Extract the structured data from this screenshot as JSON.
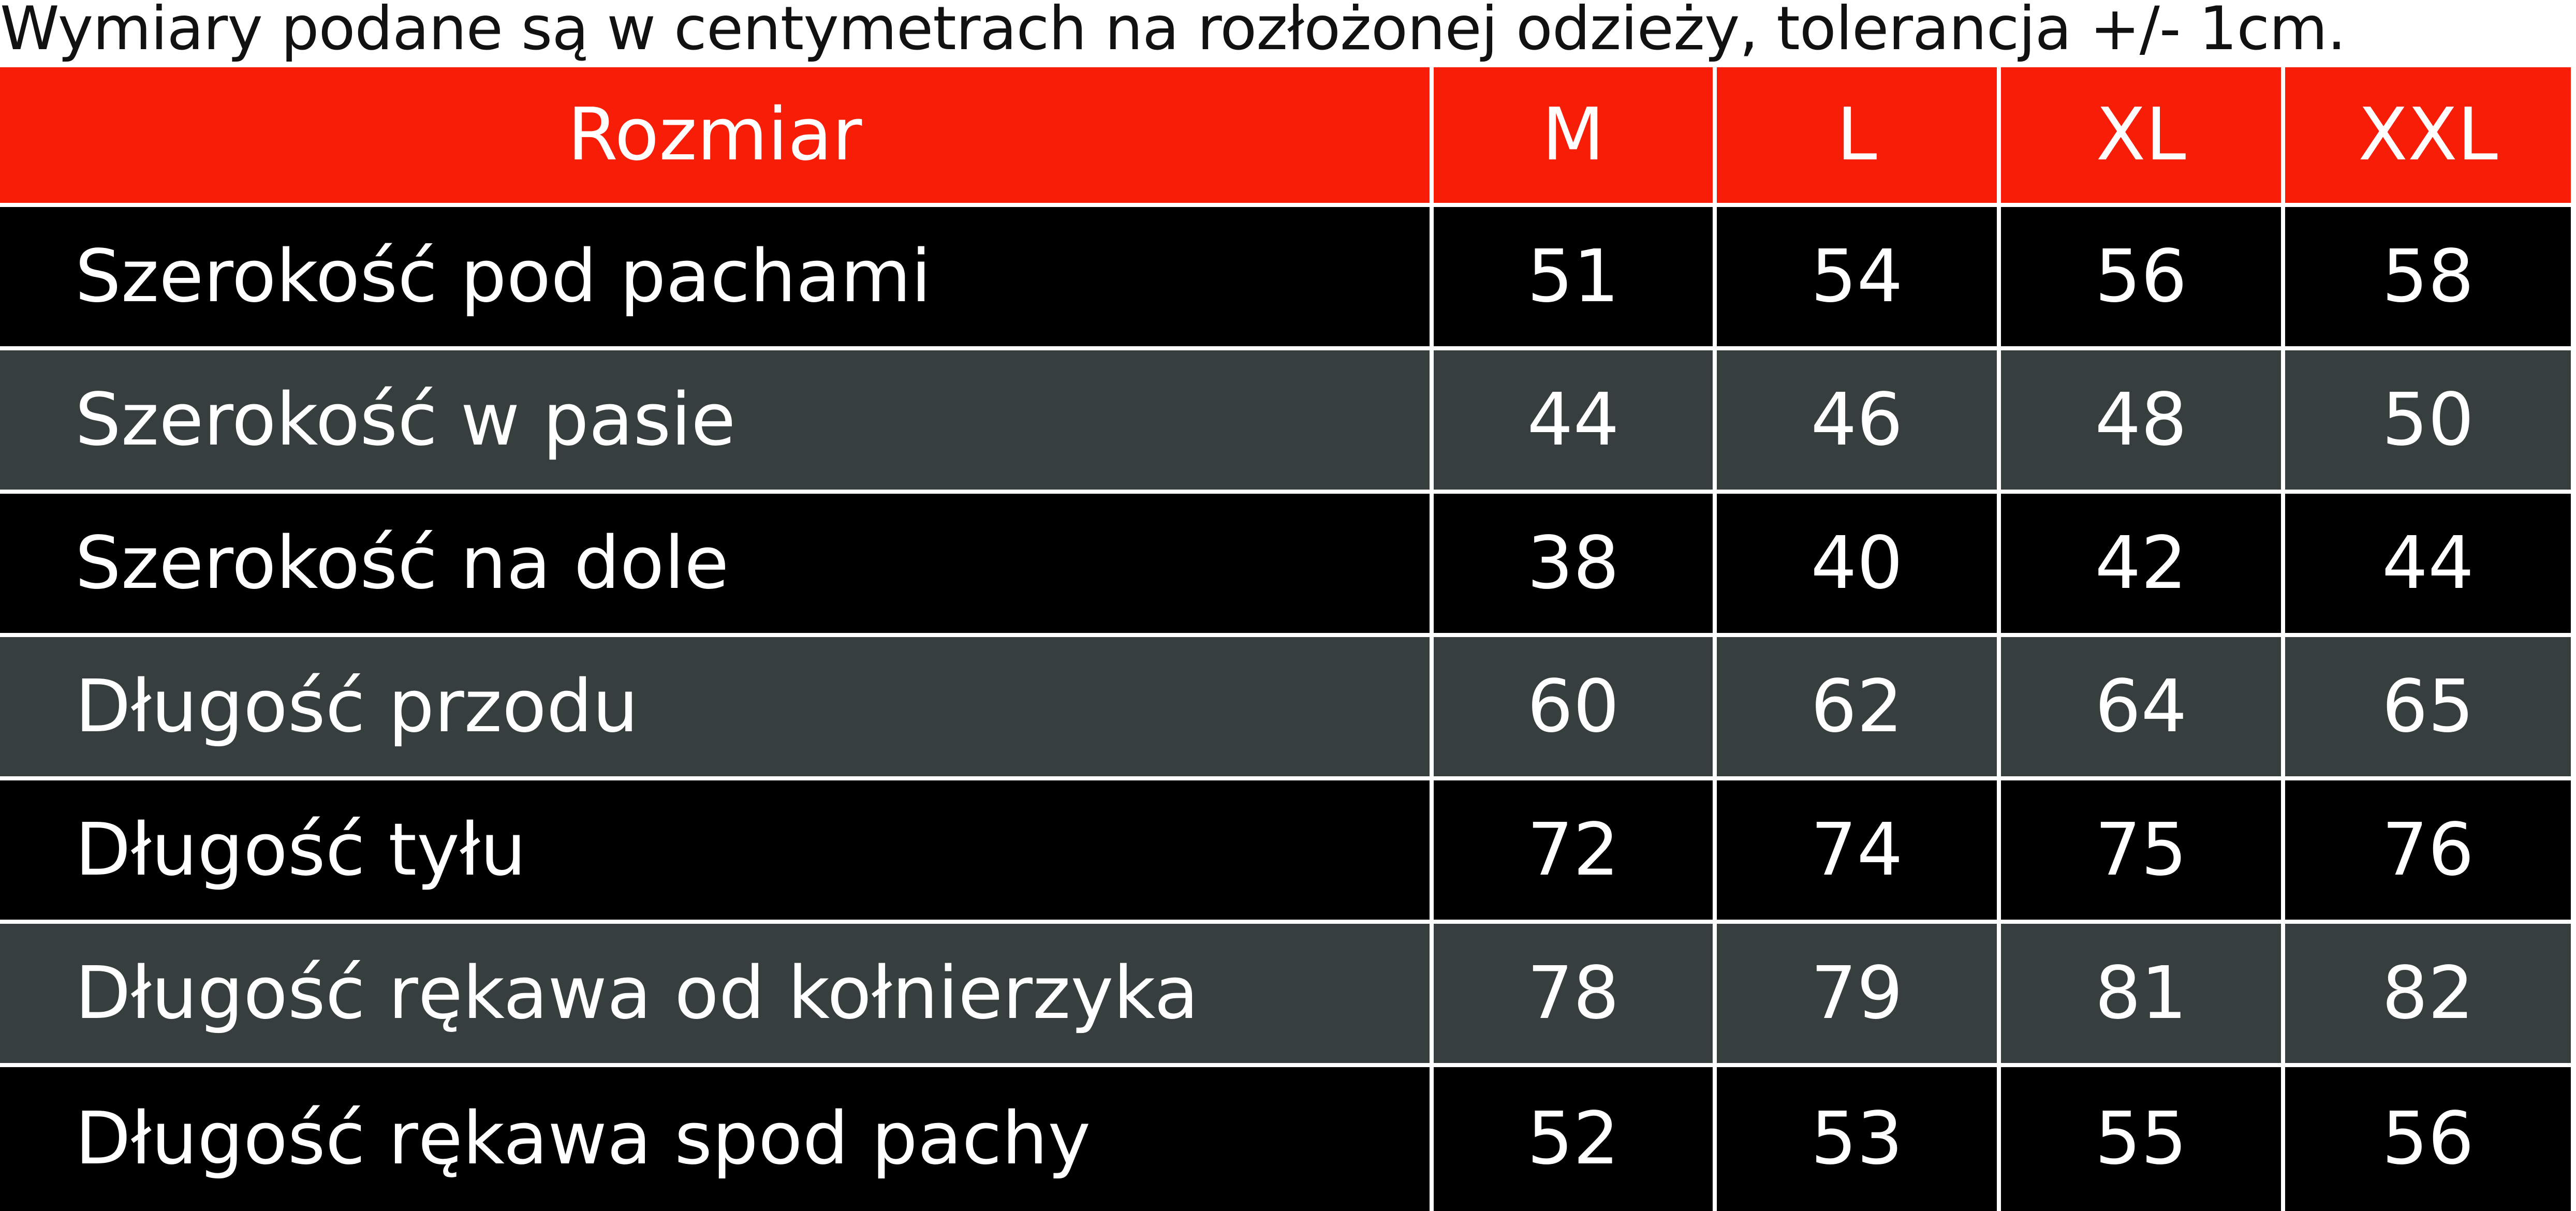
{
  "note": "Wymiary podane są w centymetrach na rozłożonej odzieży, tolerancja +/- 1cm.",
  "colors": {
    "header_bg": "#f71d06",
    "row_dark": "#000000",
    "row_grey": "#363e3e",
    "text": "#ffffff"
  },
  "table": {
    "header": {
      "label": "Rozmiar",
      "sizes": [
        "M",
        "L",
        "XL",
        "XXL"
      ]
    },
    "rows": [
      {
        "label": "Szerokość pod pachami",
        "values": [
          "51",
          "54",
          "56",
          "58"
        ]
      },
      {
        "label": "Szerokość w pasie",
        "values": [
          "44",
          "46",
          "48",
          "50"
        ]
      },
      {
        "label": "Szerokość na dole",
        "values": [
          "38",
          "40",
          "42",
          "44"
        ]
      },
      {
        "label": "Długość przodu",
        "values": [
          "60",
          "62",
          "64",
          "65"
        ]
      },
      {
        "label": "Długość tyłu",
        "values": [
          "72",
          "74",
          "75",
          "76"
        ]
      },
      {
        "label": "Długość rękawa od kołnierzyka",
        "values": [
          "78",
          "79",
          "81",
          "82"
        ]
      },
      {
        "label": "Długość rękawa spod pachy",
        "values": [
          "52",
          "53",
          "55",
          "56"
        ]
      }
    ]
  }
}
